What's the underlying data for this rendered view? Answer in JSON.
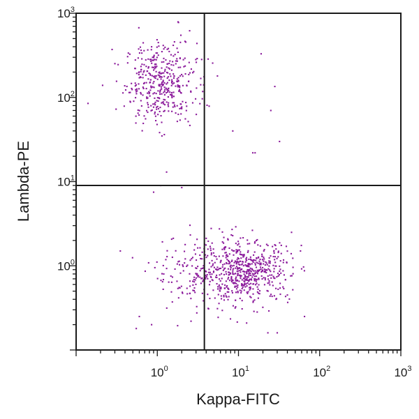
{
  "chart_data": {
    "type": "scatter",
    "xlabel": "Kappa-FITC",
    "ylabel": "Lambda-PE",
    "xscale": "log",
    "yscale": "log",
    "xlim": [
      0.1,
      1000
    ],
    "ylim": [
      0.1,
      1000
    ],
    "x_tick_labels": [
      {
        "value": 1,
        "base": "10",
        "exp": "0"
      },
      {
        "value": 10,
        "base": "10",
        "exp": "1"
      },
      {
        "value": 100,
        "base": "10",
        "exp": "2"
      },
      {
        "value": 1000,
        "base": "10",
        "exp": "3"
      }
    ],
    "y_tick_labels": [
      {
        "value": 1,
        "base": "10",
        "exp": "0"
      },
      {
        "value": 10,
        "base": "10",
        "exp": "1"
      },
      {
        "value": 100,
        "base": "10",
        "exp": "2"
      },
      {
        "value": 1000,
        "base": "10",
        "exp": "3"
      }
    ],
    "quadrant_gates": {
      "x": 3.8,
      "y": 9.0
    },
    "grid": false,
    "legend": "none",
    "marker_color": "#8b1a9b",
    "populations": [
      {
        "center": [
          1.1,
          150
        ],
        "spread_decades": [
          0.22,
          0.24
        ],
        "count": 420
      },
      {
        "center": [
          12,
          0.85
        ],
        "spread_decades": [
          0.28,
          0.18
        ],
        "count": 600
      },
      {
        "center": [
          2.8,
          0.8
        ],
        "spread_decades": [
          0.25,
          0.22
        ],
        "count": 130
      }
    ],
    "scattered_points": [
      [
        0.14,
        85
      ],
      [
        25,
        70
      ],
      [
        28,
        135
      ],
      [
        8.5,
        40
      ],
      [
        15,
        22
      ],
      [
        16,
        22
      ],
      [
        32,
        30
      ],
      [
        19,
        330
      ],
      [
        5.5,
        180
      ],
      [
        0.35,
        1.5
      ],
      [
        0.55,
        0.18
      ],
      [
        0.6,
        0.25
      ],
      [
        0.85,
        0.2
      ],
      [
        1.2,
        0.8
      ],
      [
        2.6,
        0.22
      ],
      [
        1.1,
        9.0
      ],
      [
        1.3,
        13
      ],
      [
        2.0,
        8.5
      ],
      [
        0.9,
        7.5
      ],
      [
        58,
        1.5
      ],
      [
        45,
        2.5
      ],
      [
        40,
        0.45
      ],
      [
        65,
        0.25
      ],
      [
        23,
        0.16
      ],
      [
        30,
        0.16
      ],
      [
        0.85,
        400
      ],
      [
        2.5,
        620
      ],
      [
        1.8,
        790
      ]
    ]
  }
}
